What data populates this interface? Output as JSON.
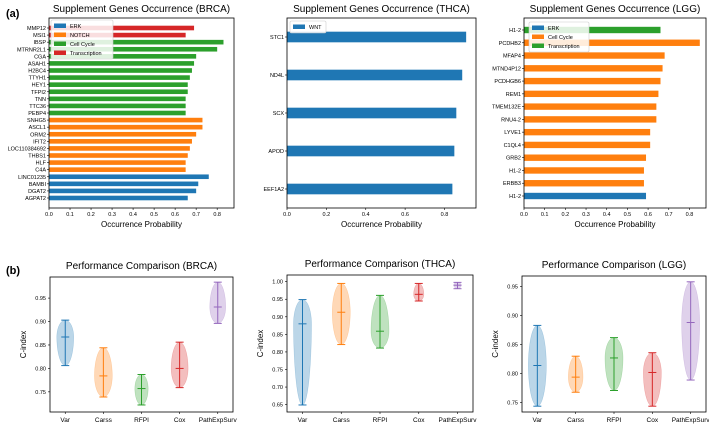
{
  "panel_labels": {
    "a": "(a)",
    "b": "(b)"
  },
  "colors": {
    "blue": "#1f77b4",
    "orange": "#ff7f0e",
    "green": "#2ca02c",
    "red": "#d62728",
    "purple": "#9467bd"
  },
  "chart_data": [
    {
      "type": "bar",
      "orientation": "horizontal",
      "title": "Supplement Genes Occurrence (BRCA)",
      "xlabel": "Occurrence Probability",
      "ylabel": "",
      "xlim": [
        0,
        0.88
      ],
      "xticks": [
        "0.0",
        "0.1",
        "0.2",
        "0.3",
        "0.4",
        "0.5",
        "0.6",
        "0.7",
        "0.8"
      ],
      "legend": {
        "placement": "top-left",
        "entries": [
          {
            "name": "ERK",
            "color": "#1f77b4"
          },
          {
            "name": "NOTCH",
            "color": "#ff7f0e"
          },
          {
            "name": "Cell Cycle",
            "color": "#2ca02c"
          },
          {
            "name": "Transcription",
            "color": "#d62728"
          }
        ]
      },
      "categories": [
        "MMP12",
        "MSI1",
        "IBSP",
        "MTRNR2L1",
        "CGA",
        "ASAH1",
        "H2BC4",
        "TTYH1",
        "HEY1",
        "TFPI2",
        "TNN",
        "TTC36",
        "PEBP4",
        "SNHG5",
        "ASCL1",
        "ORM2",
        "IFIT2",
        "LOC110384692",
        "THBS1",
        "HLF",
        "C4A",
        "LINC01235",
        "BAMBI",
        "DGAT2",
        "AGPAT2"
      ],
      "values": [
        0.69,
        0.65,
        0.83,
        0.8,
        0.7,
        0.69,
        0.68,
        0.67,
        0.66,
        0.66,
        0.65,
        0.65,
        0.65,
        0.73,
        0.73,
        0.7,
        0.68,
        0.67,
        0.66,
        0.65,
        0.65,
        0.76,
        0.71,
        0.7,
        0.66
      ],
      "groups": [
        "Transcription",
        "Transcription",
        "Cell Cycle",
        "Cell Cycle",
        "Cell Cycle",
        "Cell Cycle",
        "Cell Cycle",
        "Cell Cycle",
        "Cell Cycle",
        "Cell Cycle",
        "Cell Cycle",
        "Cell Cycle",
        "Cell Cycle",
        "NOTCH",
        "NOTCH",
        "NOTCH",
        "NOTCH",
        "NOTCH",
        "NOTCH",
        "NOTCH",
        "NOTCH",
        "ERK",
        "ERK",
        "ERK",
        "ERK"
      ]
    },
    {
      "type": "bar",
      "orientation": "horizontal",
      "title": "Supplement Genes Occurrence (THCA)",
      "xlabel": "Occurrence Probability",
      "ylabel": "",
      "xlim": [
        0,
        0.96
      ],
      "xticks": [
        "0.0",
        "0.2",
        "0.4",
        "0.6",
        "0.8"
      ],
      "legend": {
        "placement": "top-left",
        "entries": [
          {
            "name": "WNT",
            "color": "#1f77b4"
          }
        ]
      },
      "categories": [
        "STC1",
        "ND4L",
        "SCX",
        "APOD",
        "EEF1A2"
      ],
      "values": [
        0.91,
        0.89,
        0.86,
        0.85,
        0.84
      ],
      "groups": [
        "WNT",
        "WNT",
        "WNT",
        "WNT",
        "WNT"
      ]
    },
    {
      "type": "bar",
      "orientation": "horizontal",
      "title": "Supplement Genes Occurrence (LGG)",
      "xlabel": "Occurrence Probability",
      "ylabel": "",
      "xlim": [
        0,
        0.88
      ],
      "xticks": [
        "0.0",
        "0.1",
        "0.2",
        "0.3",
        "0.4",
        "0.5",
        "0.6",
        "0.7",
        "0.8"
      ],
      "legend": {
        "placement": "top-left",
        "entries": [
          {
            "name": "ERK",
            "color": "#1f77b4"
          },
          {
            "name": "Cell Cycle",
            "color": "#ff7f0e"
          },
          {
            "name": "Transcription",
            "color": "#2ca02c"
          }
        ]
      },
      "categories": [
        "H1-2",
        "PCDHB2",
        "MFAP4",
        "MTND4P12",
        "PCDHGB6",
        "REM1",
        "TMEM132E",
        "RNU4-2",
        "LYVE1",
        "C1QL4",
        "GRB2",
        "H1-2",
        "ERBB3",
        "H1-2"
      ],
      "values": [
        0.66,
        0.85,
        0.68,
        0.67,
        0.66,
        0.65,
        0.64,
        0.64,
        0.61,
        0.61,
        0.59,
        0.58,
        0.58,
        0.59
      ],
      "groups": [
        "Transcription",
        "Cell Cycle",
        "Cell Cycle",
        "Cell Cycle",
        "Cell Cycle",
        "Cell Cycle",
        "Cell Cycle",
        "Cell Cycle",
        "Cell Cycle",
        "Cell Cycle",
        "Cell Cycle",
        "Cell Cycle",
        "Cell Cycle",
        "ERK"
      ]
    },
    {
      "type": "violin",
      "title": "Performance Comparison (BRCA)",
      "xlabel": "",
      "ylabel": "C-index",
      "ylim": [
        0.707,
        0.995
      ],
      "yticks": [
        "0.75",
        "0.80",
        "0.85",
        "0.90",
        "0.95"
      ],
      "categories": [
        "Var",
        "Carss",
        "RFPI",
        "Cox",
        "PathExpSurv"
      ],
      "series_colors": [
        "#1f77b4",
        "#ff7f0e",
        "#2ca02c",
        "#d62728",
        "#9467bd"
      ],
      "min": [
        0.806,
        0.739,
        0.722,
        0.759,
        0.896
      ],
      "median": [
        0.867,
        0.784,
        0.757,
        0.8,
        0.931
      ],
      "max": [
        0.903,
        0.844,
        0.787,
        0.856,
        0.984
      ]
    },
    {
      "type": "violin",
      "title": "Performance Comparison (THCA)",
      "xlabel": "",
      "ylabel": "C-index",
      "ylim": [
        0.629,
        1.019
      ],
      "yticks": [
        "0.65",
        "0.70",
        "0.75",
        "0.80",
        "0.85",
        "0.90",
        "0.95",
        "1.00"
      ],
      "categories": [
        "Var",
        "Carss",
        "RFPI",
        "Cox",
        "PathExpSurv"
      ],
      "series_colors": [
        "#1f77b4",
        "#ff7f0e",
        "#2ca02c",
        "#d62728",
        "#9467bd"
      ],
      "min": [
        0.649,
        0.821,
        0.811,
        0.945,
        0.98
      ],
      "median": [
        0.88,
        0.913,
        0.859,
        0.964,
        0.99
      ],
      "max": [
        0.949,
        0.995,
        0.961,
        0.995,
        0.998
      ]
    },
    {
      "type": "violin",
      "title": "Performance Comparison (LGG)",
      "xlabel": "",
      "ylabel": "C-index",
      "ylim": [
        0.734,
        0.968
      ],
      "yticks": [
        "0.75",
        "0.80",
        "0.85",
        "0.90",
        "0.95"
      ],
      "categories": [
        "Var",
        "Carss",
        "RFPI",
        "Cox",
        "PathExpSurv"
      ],
      "series_colors": [
        "#1f77b4",
        "#ff7f0e",
        "#2ca02c",
        "#d62728",
        "#9467bd"
      ],
      "min": [
        0.744,
        0.768,
        0.771,
        0.744,
        0.789
      ],
      "median": [
        0.814,
        0.794,
        0.827,
        0.802,
        0.888
      ],
      "max": [
        0.883,
        0.83,
        0.862,
        0.836,
        0.958
      ]
    }
  ]
}
